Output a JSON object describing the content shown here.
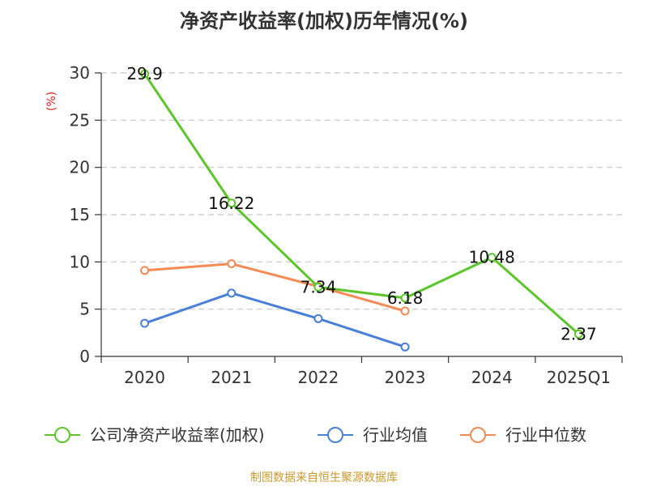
{
  "chart_data": {
    "type": "line",
    "title": "净资产收益率(加权)历年情况(%)",
    "ylabel": "(%)",
    "categories": [
      "2020",
      "2021",
      "2022",
      "2023",
      "2024",
      "2025Q1"
    ],
    "ylim": [
      0,
      30
    ],
    "yticks": [
      0,
      5,
      10,
      15,
      20,
      25,
      30
    ],
    "grid": true,
    "legend_position": "bottom",
    "series": [
      {
        "name": "公司净资产收益率(加权)",
        "color": "#5bc52a",
        "values": [
          29.9,
          16.22,
          7.34,
          6.18,
          10.48,
          2.37
        ],
        "labels": [
          "29.9",
          "16.22",
          "7.34",
          "6.18",
          "10.48",
          "2.37"
        ]
      },
      {
        "name": "行业均值",
        "color": "#4a7fd9",
        "values": [
          3.5,
          6.7,
          4.0,
          1.0,
          null,
          null
        ]
      },
      {
        "name": "行业中位数",
        "color": "#f58a55",
        "values": [
          9.1,
          9.8,
          7.4,
          4.8,
          null,
          null
        ]
      }
    ]
  },
  "ylabel_color": "#e02020",
  "source": "制图数据来自恒生聚源数据库"
}
